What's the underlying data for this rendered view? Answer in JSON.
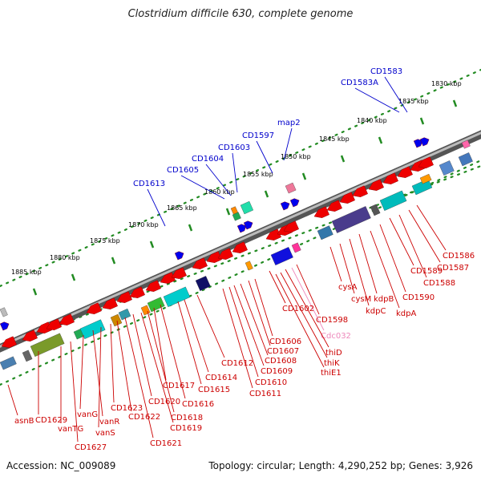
{
  "title": "Clostridium difficile 630, complete genome",
  "footer": {
    "accession": "Accession: NC_009089",
    "info": "Topology: circular; Length: 4,290,252 bp; Genes: 3,926"
  },
  "colors": {
    "forward_label": "#0000cc",
    "reverse_label": "#cc0000",
    "rna_label": "#ee88bb",
    "dots": "#228b22",
    "backbone": "#777777",
    "forward_gene": "#0000ee",
    "reverse_gene": "#ee0000"
  },
  "ruler": [
    "1830 kbp",
    "1835 kbp",
    "1840 kbp",
    "1845 kbp",
    "1850 kbp",
    "1855 kbp",
    "1860 kbp",
    "1865 kbp",
    "1870 kbp",
    "1875 kbp",
    "1880 kbp",
    "1885 kbp"
  ],
  "forward_labels": [
    "CD1583",
    "CD1583A",
    "map2",
    "CD1597",
    "CD1603",
    "CD1604",
    "CD1605",
    "CD1613"
  ],
  "reverse_labels": [
    "CD1586",
    "CD1587",
    "CD1588",
    "CD1589",
    "CD1590",
    "kdpA",
    "kdpB",
    "kdpC",
    "cysM",
    "cysA",
    "CD1598",
    "Cdc032",
    "thiD",
    "thiK",
    "thiE1",
    "CD1602",
    "CD1606",
    "CD1607",
    "CD1608",
    "CD1609",
    "CD1610",
    "CD1611",
    "CD1612",
    "CD1614",
    "CD1615",
    "CD1616",
    "CD1617",
    "CD1618",
    "CD1619",
    "CD1620",
    "CD1621",
    "CD1622",
    "CD1623",
    "vanS",
    "vanR",
    "vanG",
    "CD1627",
    "vanTG",
    "CD1629",
    "asnB"
  ]
}
